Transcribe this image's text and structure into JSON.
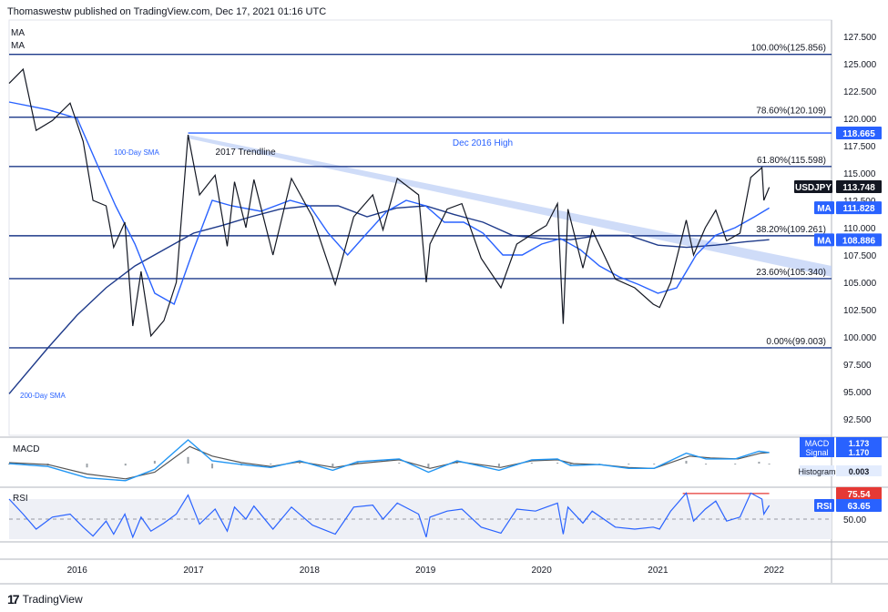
{
  "header": {
    "publisher": "Thomaswestw published on TradingView.com, Dec 17, 2021 01:16 UTC",
    "ma1": "MA",
    "ma2": "MA"
  },
  "footer": {
    "brand": "TradingView"
  },
  "colors": {
    "candle": "#131722",
    "sma": "#2962ff",
    "fib": "#1e3a8a",
    "trend": "#bfd0f5",
    "red": "#e53935",
    "macd_line": "#2196f3",
    "signal_line": "#555555",
    "hist": "#9aa0a6"
  },
  "chart_data": {
    "type": "line",
    "symbol": "USDJPY",
    "x_range": [
      "2015-06-01",
      "2022-07-01"
    ],
    "x_tick_labels": [
      "2016",
      "2017",
      "2018",
      "2019",
      "2020",
      "2021",
      "2022"
    ],
    "x_ticks": [
      "2016-01-01",
      "2017-01-01",
      "2018-01-01",
      "2019-01-01",
      "2020-01-01",
      "2021-01-01",
      "2022-01-01"
    ],
    "ylim": [
      91.0,
      129.0
    ],
    "y_ticks": [
      "127.500",
      "125.000",
      "122.500",
      "120.000",
      "117.500",
      "115.000",
      "112.500",
      "110.000",
      "107.500",
      "105.000",
      "102.500",
      "100.000",
      "97.500",
      "95.000",
      "92.500"
    ],
    "price_series": [
      [
        "2015-06-01",
        123.2
      ],
      [
        "2015-07-15",
        124.5
      ],
      [
        "2015-08-25",
        118.9
      ],
      [
        "2015-10-15",
        119.8
      ],
      [
        "2015-12-10",
        121.4
      ],
      [
        "2016-01-20",
        117.9
      ],
      [
        "2016-02-20",
        112.5
      ],
      [
        "2016-04-01",
        112.0
      ],
      [
        "2016-04-25",
        108.2
      ],
      [
        "2016-05-30",
        110.5
      ],
      [
        "2016-06-24",
        101.0
      ],
      [
        "2016-07-20",
        106.0
      ],
      [
        "2016-08-20",
        100.1
      ],
      [
        "2016-09-30",
        101.5
      ],
      [
        "2016-11-08",
        105.0
      ],
      [
        "2016-12-15",
        118.5
      ],
      [
        "2017-01-20",
        113.0
      ],
      [
        "2017-03-10",
        114.8
      ],
      [
        "2017-04-17",
        108.3
      ],
      [
        "2017-05-10",
        114.2
      ],
      [
        "2017-06-15",
        110.0
      ],
      [
        "2017-07-10",
        114.4
      ],
      [
        "2017-09-08",
        107.5
      ],
      [
        "2017-11-05",
        114.5
      ],
      [
        "2018-01-10",
        111.0
      ],
      [
        "2018-03-23",
        104.8
      ],
      [
        "2018-05-20",
        111.0
      ],
      [
        "2018-07-19",
        113.0
      ],
      [
        "2018-08-20",
        109.8
      ],
      [
        "2018-10-04",
        114.5
      ],
      [
        "2018-12-10",
        113.0
      ],
      [
        "2019-01-03",
        105.0
      ],
      [
        "2019-01-15",
        108.5
      ],
      [
        "2019-03-10",
        111.7
      ],
      [
        "2019-04-25",
        112.2
      ],
      [
        "2019-06-25",
        107.2
      ],
      [
        "2019-08-26",
        104.5
      ],
      [
        "2019-10-15",
        108.5
      ],
      [
        "2019-12-13",
        109.6
      ],
      [
        "2020-01-16",
        110.2
      ],
      [
        "2020-02-20",
        112.2
      ],
      [
        "2020-03-09",
        101.2
      ],
      [
        "2020-03-24",
        111.7
      ],
      [
        "2020-05-10",
        106.3
      ],
      [
        "2020-06-08",
        109.8
      ],
      [
        "2020-08-20",
        105.3
      ],
      [
        "2020-10-20",
        104.5
      ],
      [
        "2020-12-17",
        103.0
      ],
      [
        "2021-01-06",
        102.7
      ],
      [
        "2021-02-10",
        105.0
      ],
      [
        "2021-03-31",
        110.7
      ],
      [
        "2021-04-23",
        107.5
      ],
      [
        "2021-05-30",
        110.0
      ],
      [
        "2021-07-02",
        111.6
      ],
      [
        "2021-08-05",
        108.8
      ],
      [
        "2021-09-16",
        109.5
      ],
      [
        "2021-10-20",
        114.6
      ],
      [
        "2021-11-24",
        115.5
      ],
      [
        "2021-11-30",
        112.5
      ],
      [
        "2021-12-17",
        113.7
      ]
    ],
    "sma_100": [
      [
        "2015-06-01",
        121.5
      ],
      [
        "2015-10-01",
        120.8
      ],
      [
        "2016-01-01",
        120.0
      ],
      [
        "2016-03-01",
        116.0
      ],
      [
        "2016-05-01",
        112.0
      ],
      [
        "2016-07-01",
        108.5
      ],
      [
        "2016-09-01",
        104.0
      ],
      [
        "2016-11-01",
        103.0
      ],
      [
        "2017-01-01",
        108.0
      ],
      [
        "2017-03-01",
        112.5
      ],
      [
        "2017-05-01",
        112.0
      ],
      [
        "2017-08-01",
        111.5
      ],
      [
        "2017-11-01",
        112.5
      ],
      [
        "2018-01-01",
        112.0
      ],
      [
        "2018-03-01",
        109.5
      ],
      [
        "2018-05-01",
        107.5
      ],
      [
        "2018-07-01",
        109.5
      ],
      [
        "2018-09-01",
        111.5
      ],
      [
        "2018-11-01",
        112.5
      ],
      [
        "2019-01-01",
        112.0
      ],
      [
        "2019-03-01",
        110.5
      ],
      [
        "2019-05-01",
        110.5
      ],
      [
        "2019-07-01",
        109.5
      ],
      [
        "2019-09-01",
        107.5
      ],
      [
        "2019-11-01",
        107.5
      ],
      [
        "2020-01-01",
        108.5
      ],
      [
        "2020-03-01",
        109.0
      ],
      [
        "2020-05-01",
        108.0
      ],
      [
        "2020-07-01",
        106.5
      ],
      [
        "2020-09-01",
        105.5
      ],
      [
        "2020-11-01",
        104.8
      ],
      [
        "2021-01-01",
        104.0
      ],
      [
        "2021-03-01",
        104.5
      ],
      [
        "2021-05-01",
        107.5
      ],
      [
        "2021-07-01",
        109.3
      ],
      [
        "2021-09-01",
        110.0
      ],
      [
        "2021-11-01",
        111.0
      ],
      [
        "2021-12-17",
        111.8
      ]
    ],
    "sma_200": [
      [
        "2015-06-01",
        94.8
      ],
      [
        "2015-10-01",
        99.0
      ],
      [
        "2016-01-01",
        102.0
      ],
      [
        "2016-04-01",
        104.5
      ],
      [
        "2016-07-01",
        106.5
      ],
      [
        "2016-10-01",
        108.0
      ],
      [
        "2017-01-01",
        109.5
      ],
      [
        "2017-04-01",
        110.2
      ],
      [
        "2017-07-01",
        111.0
      ],
      [
        "2017-10-01",
        111.7
      ],
      [
        "2018-01-01",
        112.0
      ],
      [
        "2018-04-01",
        112.0
      ],
      [
        "2018-07-01",
        111.0
      ],
      [
        "2018-10-01",
        111.8
      ],
      [
        "2019-01-01",
        112.0
      ],
      [
        "2019-04-01",
        111.2
      ],
      [
        "2019-07-01",
        110.5
      ],
      [
        "2019-10-01",
        109.3
      ],
      [
        "2020-01-01",
        109.0
      ],
      [
        "2020-04-01",
        108.9
      ],
      [
        "2020-07-01",
        109.3
      ],
      [
        "2020-10-01",
        109.3
      ],
      [
        "2021-01-01",
        108.4
      ],
      [
        "2021-04-01",
        108.2
      ],
      [
        "2021-07-01",
        108.4
      ],
      [
        "2021-10-01",
        108.7
      ],
      [
        "2021-12-17",
        108.9
      ]
    ],
    "horizontal_levels": [
      {
        "value": 125.856,
        "label": "100.00%(125.856)"
      },
      {
        "value": 120.109,
        "label": "78.60%(120.109)"
      },
      {
        "value": 115.598,
        "label": "61.80%(115.598)"
      },
      {
        "value": 109.261,
        "label": "38.20%(109.261)"
      },
      {
        "value": 105.34,
        "label": "23.60%(105.340)"
      },
      {
        "value": 99.003,
        "label": "0.00%(99.003)"
      }
    ],
    "dec_2016_high": {
      "value": 118.665,
      "label": "Dec 2016 High",
      "x_start": "2016-12-15"
    },
    "trendline": {
      "label": "2017 Trendline",
      "start": [
        "2016-12-15",
        118.5
      ],
      "end": [
        "2022-07-01",
        106.5
      ]
    },
    "annotations": {
      "sma100": "100-Day SMA",
      "sma200": "200-Day SMA"
    },
    "price_tags": [
      {
        "text": "118.665",
        "value": 118.665,
        "style": "blue"
      },
      {
        "text": "USDJPY",
        "value": 113.748,
        "style": "black"
      },
      {
        "text": "113.748",
        "value": 113.748,
        "style": "black"
      },
      {
        "text": "MA",
        "value": 111.828,
        "style": "blue"
      },
      {
        "text": "111.828",
        "value": 111.828,
        "style": "blue"
      },
      {
        "text": "MA",
        "value": 108.886,
        "style": "blue"
      },
      {
        "text": "108.886",
        "value": 108.886,
        "style": "blue"
      }
    ],
    "macd": {
      "label": "MACD",
      "tags": [
        {
          "name": "MACD",
          "value": "1.173"
        },
        {
          "name": "Signal",
          "value": "1.170"
        },
        {
          "name": "Histogram",
          "value": "0.003"
        }
      ],
      "macd_line": [
        [
          "2015-06-01",
          0.0
        ],
        [
          "2015-10-01",
          -0.3
        ],
        [
          "2016-02-01",
          -1.5
        ],
        [
          "2016-06-01",
          -1.8
        ],
        [
          "2016-09-01",
          -0.6
        ],
        [
          "2016-12-15",
          2.5
        ],
        [
          "2017-03-01",
          0.3
        ],
        [
          "2017-06-01",
          -0.1
        ],
        [
          "2017-09-01",
          -0.4
        ],
        [
          "2017-12-01",
          0.3
        ],
        [
          "2018-03-15",
          -0.7
        ],
        [
          "2018-06-01",
          0.2
        ],
        [
          "2018-10-10",
          0.5
        ],
        [
          "2019-01-10",
          -0.9
        ],
        [
          "2019-04-10",
          0.3
        ],
        [
          "2019-08-20",
          -0.7
        ],
        [
          "2019-12-01",
          0.4
        ],
        [
          "2020-02-20",
          0.5
        ],
        [
          "2020-04-01",
          -0.2
        ],
        [
          "2020-07-01",
          -0.1
        ],
        [
          "2020-10-01",
          -0.5
        ],
        [
          "2020-12-20",
          -0.5
        ],
        [
          "2021-03-31",
          1.1
        ],
        [
          "2021-06-01",
          0.5
        ],
        [
          "2021-09-01",
          0.5
        ],
        [
          "2021-11-15",
          1.3
        ],
        [
          "2021-12-17",
          1.17
        ]
      ],
      "signal_line": [
        [
          "2015-06-01",
          0.1
        ],
        [
          "2015-10-01",
          -0.1
        ],
        [
          "2016-02-01",
          -1.1
        ],
        [
          "2016-06-01",
          -1.6
        ],
        [
          "2016-09-01",
          -0.9
        ],
        [
          "2016-12-20",
          1.8
        ],
        [
          "2017-03-01",
          0.8
        ],
        [
          "2017-06-01",
          0.1
        ],
        [
          "2017-09-01",
          -0.3
        ],
        [
          "2017-12-01",
          0.2
        ],
        [
          "2018-03-20",
          -0.4
        ],
        [
          "2018-06-01",
          0.0
        ],
        [
          "2018-10-10",
          0.4
        ],
        [
          "2019-01-15",
          -0.5
        ],
        [
          "2019-04-15",
          0.2
        ],
        [
          "2019-08-25",
          -0.4
        ],
        [
          "2019-12-01",
          0.3
        ],
        [
          "2020-02-20",
          0.4
        ],
        [
          "2020-04-10",
          0.0
        ],
        [
          "2020-07-01",
          -0.1
        ],
        [
          "2020-10-01",
          -0.4
        ],
        [
          "2020-12-20",
          -0.5
        ],
        [
          "2021-04-10",
          0.8
        ],
        [
          "2021-06-15",
          0.6
        ],
        [
          "2021-09-10",
          0.5
        ],
        [
          "2021-11-20",
          1.1
        ],
        [
          "2021-12-17",
          1.17
        ]
      ],
      "ylim": [
        -2.2,
        2.6
      ]
    },
    "rsi": {
      "label": "RSI",
      "ylim": [
        30,
        80
      ],
      "ticks": [
        "50.00"
      ],
      "tags": [
        {
          "name": "",
          "value": "75.54"
        },
        {
          "name": "RSI",
          "value": "63.65"
        }
      ],
      "overbought_line": {
        "value": 75.54,
        "x_start": "2021-03-20",
        "x_end": "2021-12-17"
      },
      "series": [
        [
          "2015-06-01",
          70
        ],
        [
          "2015-07-15",
          55
        ],
        [
          "2015-08-25",
          40
        ],
        [
          "2015-10-15",
          52
        ],
        [
          "2015-12-10",
          55
        ],
        [
          "2016-01-20",
          42
        ],
        [
          "2016-02-20",
          33
        ],
        [
          "2016-04-01",
          48
        ],
        [
          "2016-04-25",
          35
        ],
        [
          "2016-05-30",
          55
        ],
        [
          "2016-06-24",
          32
        ],
        [
          "2016-07-20",
          52
        ],
        [
          "2016-08-20",
          38
        ],
        [
          "2016-09-30",
          46
        ],
        [
          "2016-11-08",
          55
        ],
        [
          "2016-12-15",
          74
        ],
        [
          "2017-01-20",
          45
        ],
        [
          "2017-03-10",
          60
        ],
        [
          "2017-04-17",
          38
        ],
        [
          "2017-05-10",
          62
        ],
        [
          "2017-06-15",
          50
        ],
        [
          "2017-07-10",
          63
        ],
        [
          "2017-09-08",
          40
        ],
        [
          "2017-11-05",
          62
        ],
        [
          "2018-01-10",
          44
        ],
        [
          "2018-03-23",
          35
        ],
        [
          "2018-05-20",
          62
        ],
        [
          "2018-07-19",
          64
        ],
        [
          "2018-08-20",
          50
        ],
        [
          "2018-10-04",
          66
        ],
        [
          "2018-12-10",
          55
        ],
        [
          "2019-01-03",
          32
        ],
        [
          "2019-01-15",
          52
        ],
        [
          "2019-03-10",
          58
        ],
        [
          "2019-04-25",
          60
        ],
        [
          "2019-06-25",
          42
        ],
        [
          "2019-08-26",
          36
        ],
        [
          "2019-10-15",
          60
        ],
        [
          "2019-12-13",
          58
        ],
        [
          "2020-01-16",
          62
        ],
        [
          "2020-02-20",
          66
        ],
        [
          "2020-03-09",
          35
        ],
        [
          "2020-03-24",
          62
        ],
        [
          "2020-05-10",
          46
        ],
        [
          "2020-06-08",
          58
        ],
        [
          "2020-08-20",
          42
        ],
        [
          "2020-10-20",
          40
        ],
        [
          "2020-12-17",
          42
        ],
        [
          "2021-01-06",
          40
        ],
        [
          "2021-02-10",
          58
        ],
        [
          "2021-03-31",
          76
        ],
        [
          "2021-04-23",
          48
        ],
        [
          "2021-05-30",
          60
        ],
        [
          "2021-07-02",
          68
        ],
        [
          "2021-08-05",
          48
        ],
        [
          "2021-09-16",
          52
        ],
        [
          "2021-10-20",
          76
        ],
        [
          "2021-11-24",
          70
        ],
        [
          "2021-11-30",
          55
        ],
        [
          "2021-12-17",
          63.65
        ]
      ]
    }
  }
}
